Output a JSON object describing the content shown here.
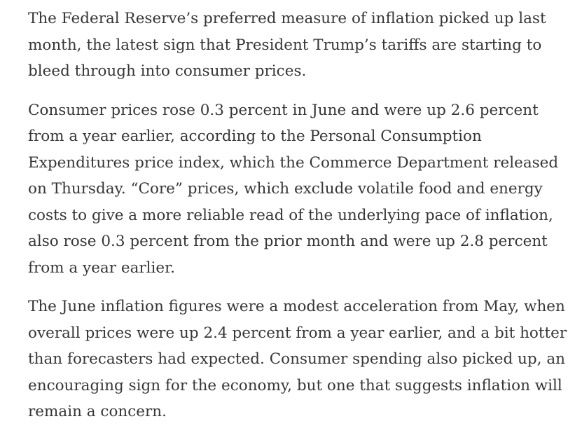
{
  "article": {
    "paragraphs": [
      "The Federal Reserve’s preferred measure of inflation picked up last month, the latest sign that President Trump’s tariffs are starting to bleed through into consumer prices.",
      "Consumer prices rose 0.3 percent in June and were up 2.6 percent from a year earlier, according to the Personal Consumption Expenditures price index, which the Commerce Department released on Thursday. “Core” prices, which exclude volatile food and energy costs to give a more reliable read of the underlying pace of inflation, also rose 0.3 percent from the prior month and were up 2.8 percent from a year earlier.",
      "The June inflation figures were a modest acceleration from May, when overall prices were up 2.4 percent from a year earlier, and a bit hotter than forecasters had expected. Consumer spending also picked up, an encouraging sign for the economy, but one that suggests inflation will remain a concern."
    ]
  }
}
